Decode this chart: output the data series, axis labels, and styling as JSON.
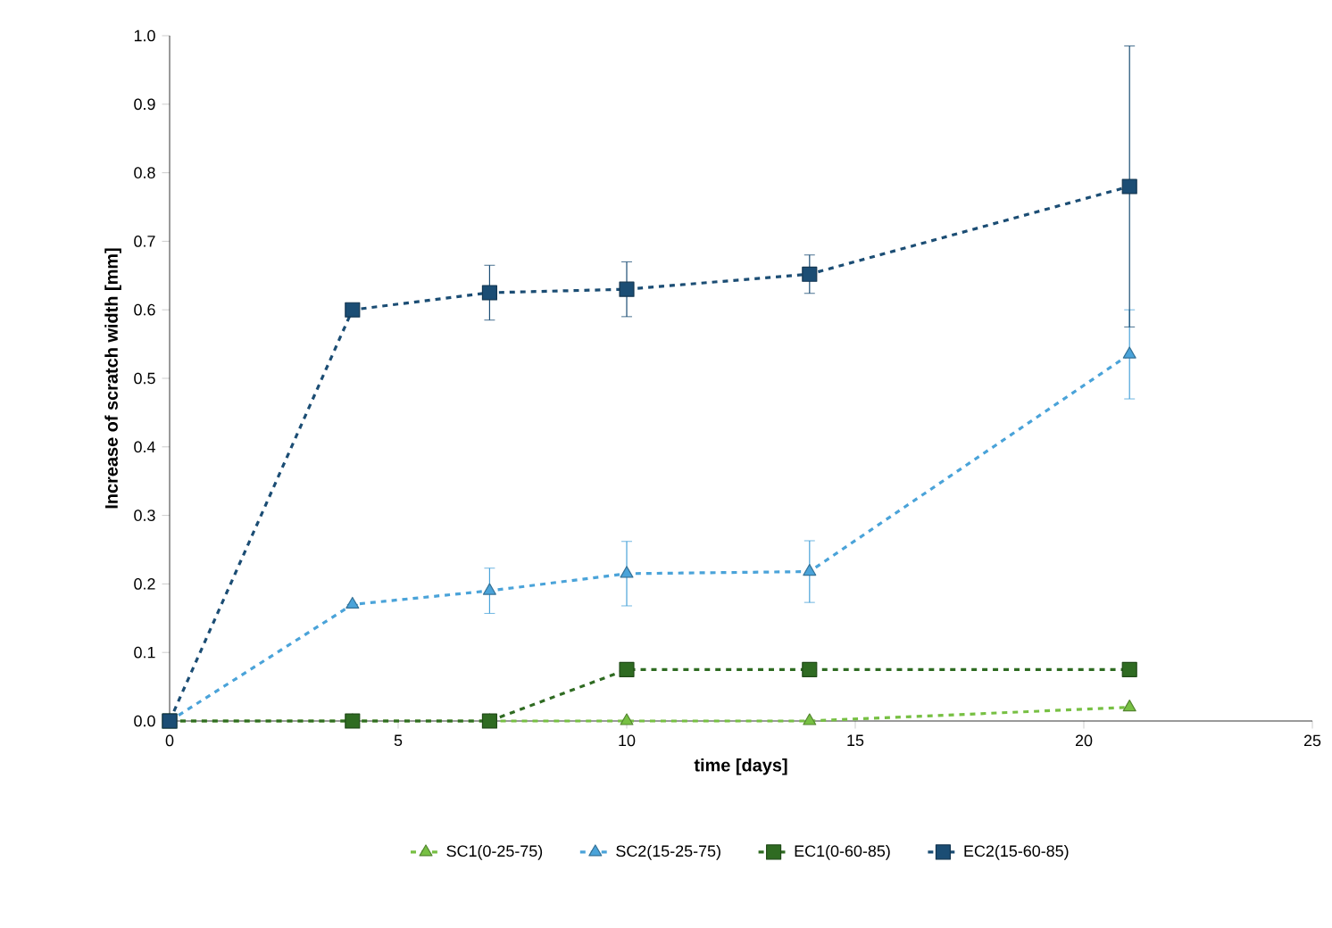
{
  "chart_data": {
    "type": "line",
    "xlabel": "time [days]",
    "ylabel": "Increase of scratch  width [mm]",
    "x": [
      0,
      4,
      7,
      10,
      14,
      21
    ],
    "xlim": [
      0,
      25
    ],
    "xticks": [
      0,
      5,
      10,
      15,
      20,
      25
    ],
    "ylim": [
      0,
      1
    ],
    "yticks": [
      {
        "value": 0,
        "label": "0.0"
      },
      {
        "value": 0.1,
        "label": "0.1"
      },
      {
        "value": 0.2,
        "label": "0.2"
      },
      {
        "value": 0.3,
        "label": "0.3"
      },
      {
        "value": 0.4,
        "label": "0.4"
      },
      {
        "value": 0.5,
        "label": "0.5"
      },
      {
        "value": 0.6,
        "label": "0.6"
      },
      {
        "value": 0.7,
        "label": "0.7"
      },
      {
        "value": 0.8,
        "label": "0.8"
      },
      {
        "value": 0.9,
        "label": "0.9"
      },
      {
        "value": 1,
        "label": "1.0"
      }
    ],
    "legend": "bottom",
    "line_style": "dashed",
    "series": [
      {
        "name": "SC1(0-25-75)",
        "color": "#77c043",
        "marker": "triangle",
        "values": [
          0,
          0,
          0,
          0,
          0,
          0.02
        ]
      },
      {
        "name": "SC2(15-25-75)",
        "color": "#4aa3d9",
        "marker": "triangle",
        "values": [
          0,
          0.17,
          0.19,
          0.215,
          0.218,
          0.535
        ],
        "errors": [
          null,
          null,
          0.033,
          0.047,
          0.045,
          0.065
        ]
      },
      {
        "name": "EC1(0-60-85)",
        "color": "#2f6b22",
        "marker": "square",
        "values": [
          0,
          0,
          0,
          0.075,
          0.075,
          0.075
        ]
      },
      {
        "name": "EC2(15-60-85)",
        "color": "#1b4d74",
        "marker": "square",
        "values": [
          0,
          0.6,
          0.625,
          0.63,
          0.652,
          0.78
        ],
        "errors": [
          null,
          null,
          0.04,
          0.04,
          0.028,
          0.205
        ]
      }
    ]
  }
}
